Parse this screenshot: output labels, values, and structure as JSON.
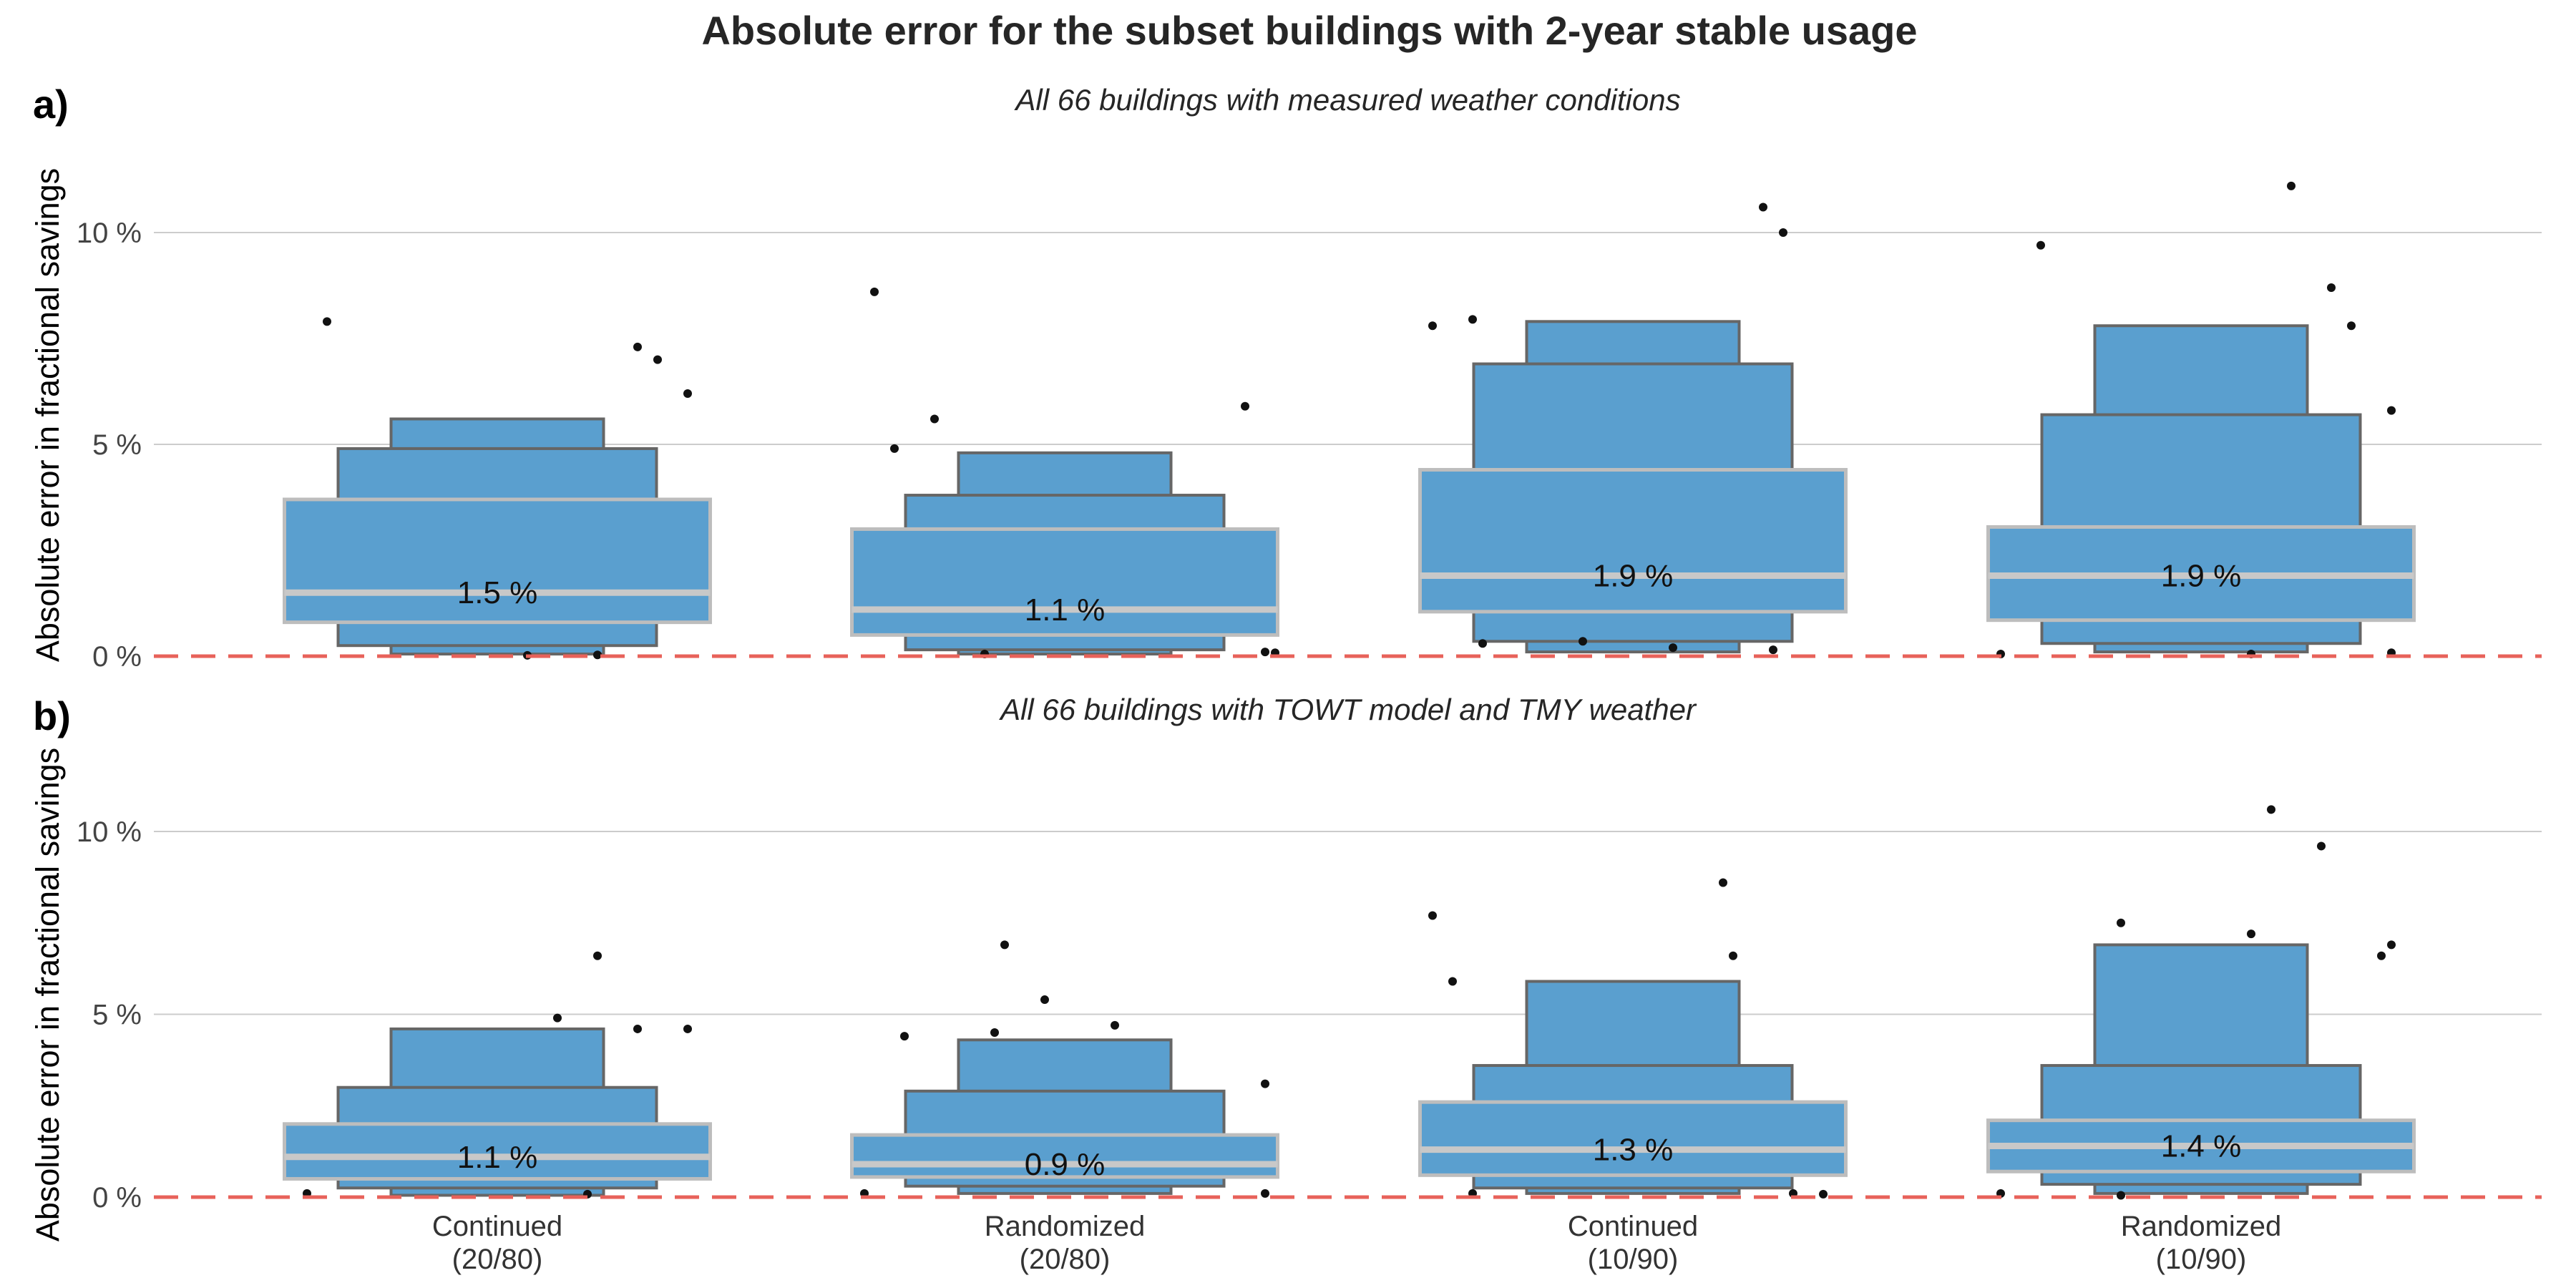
{
  "title": "Absolute error for the subset buildings with 2-year stable usage",
  "colors": {
    "box_fill": "#5A9FCF",
    "box_edge": "#666666",
    "median": "#C8C8C8",
    "inner_box_edge": "#BDBDBD",
    "zero_line": "#E8625A",
    "grid": "#CCCCCC",
    "points": "#111111"
  },
  "chart_data": [
    {
      "type": "boxen",
      "panel_label": "a)",
      "subtitle": "All 66 buildings with measured weather conditions",
      "ylabel": "Absolute error in fractional savings",
      "ylim": [
        0,
        12
      ],
      "yticks": [
        0,
        5,
        10
      ],
      "ytick_labels": [
        "0 %",
        "5 %",
        "10 %"
      ],
      "grid": true,
      "zero_reference_line": 0,
      "categories": [
        "Continued\n(20/80)",
        "Randomized\n(20/80)",
        "Continued\n(10/90)",
        "Randomized\n(10/90)"
      ],
      "groups": [
        {
          "median": 1.5,
          "median_label": "1.5 %",
          "levels": [
            [
              0.8,
              3.7
            ],
            [
              0.25,
              4.9
            ],
            [
              0.05,
              5.6
            ]
          ],
          "outliers": [
            [
              -0.17,
              7.9
            ],
            [
              0.14,
              7.3
            ],
            [
              0.16,
              7.0
            ],
            [
              0.19,
              6.2
            ],
            [
              0.03,
              0.02
            ],
            [
              0.1,
              0.03
            ]
          ]
        },
        {
          "median": 1.1,
          "median_label": "1.1 %",
          "levels": [
            [
              0.5,
              3.0
            ],
            [
              0.15,
              3.8
            ],
            [
              0.05,
              4.8
            ]
          ],
          "outliers": [
            [
              -0.19,
              8.6
            ],
            [
              -0.13,
              5.6
            ],
            [
              0.18,
              5.9
            ],
            [
              -0.17,
              4.9
            ],
            [
              0.2,
              0.1
            ],
            [
              0.21,
              0.08
            ],
            [
              -0.08,
              0.05
            ]
          ]
        },
        {
          "median": 1.9,
          "median_label": "1.9 %",
          "levels": [
            [
              1.05,
              4.4
            ],
            [
              0.35,
              6.9
            ],
            [
              0.1,
              7.9
            ]
          ],
          "outliers": [
            [
              0.13,
              10.6
            ],
            [
              0.15,
              10.0
            ],
            [
              -0.2,
              7.8
            ],
            [
              -0.16,
              7.95
            ],
            [
              0.04,
              0.2
            ],
            [
              -0.05,
              0.35
            ],
            [
              0.14,
              0.15
            ],
            [
              -0.15,
              0.3
            ]
          ]
        },
        {
          "median": 1.9,
          "median_label": "1.9 %",
          "levels": [
            [
              0.85,
              3.05
            ],
            [
              0.3,
              5.7
            ],
            [
              0.1,
              7.8
            ]
          ],
          "outliers": [
            [
              0.09,
              11.1
            ],
            [
              -0.16,
              9.7
            ],
            [
              0.13,
              8.7
            ],
            [
              0.15,
              7.8
            ],
            [
              0.19,
              5.8
            ],
            [
              0.05,
              0.05
            ],
            [
              0.19,
              0.08
            ],
            [
              -0.2,
              0.05
            ]
          ]
        }
      ]
    },
    {
      "type": "boxen",
      "panel_label": "b)",
      "subtitle": "All 66 buildings with TOWT model and TMY weather",
      "ylabel": "Absolute error in fractional savings",
      "ylim": [
        0,
        12
      ],
      "yticks": [
        0,
        5,
        10
      ],
      "ytick_labels": [
        "0 %",
        "5 %",
        "10 %"
      ],
      "grid": true,
      "zero_reference_line": 0,
      "categories": [
        "Continued\n(20/80)",
        "Randomized\n(20/80)",
        "Continued\n(10/90)",
        "Randomized\n(10/90)"
      ],
      "groups": [
        {
          "median": 1.1,
          "median_label": "1.1 %",
          "levels": [
            [
              0.5,
              2.0
            ],
            [
              0.25,
              3.0
            ],
            [
              0.05,
              4.6
            ]
          ],
          "outliers": [
            [
              0.1,
              6.6
            ],
            [
              0.06,
              4.9
            ],
            [
              0.14,
              4.6
            ],
            [
              0.19,
              4.6
            ],
            [
              -0.19,
              0.1
            ],
            [
              0.09,
              0.08
            ]
          ]
        },
        {
          "median": 0.9,
          "median_label": "0.9 %",
          "levels": [
            [
              0.55,
              1.7
            ],
            [
              0.3,
              2.9
            ],
            [
              0.1,
              4.3
            ]
          ],
          "outliers": [
            [
              -0.06,
              6.9
            ],
            [
              -0.02,
              5.4
            ],
            [
              0.05,
              4.7
            ],
            [
              -0.07,
              4.5
            ],
            [
              -0.16,
              4.4
            ],
            [
              0.2,
              3.1
            ],
            [
              -0.2,
              0.1
            ],
            [
              0.2,
              0.1
            ]
          ]
        },
        {
          "median": 1.3,
          "median_label": "1.3 %",
          "levels": [
            [
              0.6,
              2.6
            ],
            [
              0.25,
              3.6
            ],
            [
              0.1,
              5.9
            ]
          ],
          "outliers": [
            [
              0.09,
              8.6
            ],
            [
              -0.2,
              7.7
            ],
            [
              0.1,
              6.6
            ],
            [
              -0.18,
              5.9
            ],
            [
              -0.16,
              0.1
            ],
            [
              0.16,
              0.1
            ],
            [
              0.19,
              0.08
            ]
          ]
        },
        {
          "median": 1.4,
          "median_label": "1.4 %",
          "levels": [
            [
              0.7,
              2.1
            ],
            [
              0.35,
              3.6
            ],
            [
              0.1,
              6.9
            ]
          ],
          "outliers": [
            [
              0.07,
              10.6
            ],
            [
              0.12,
              9.6
            ],
            [
              -0.08,
              7.5
            ],
            [
              0.05,
              7.2
            ],
            [
              0.19,
              6.9
            ],
            [
              0.18,
              6.6
            ],
            [
              -0.2,
              0.1
            ],
            [
              -0.08,
              0.05
            ]
          ]
        }
      ]
    }
  ]
}
